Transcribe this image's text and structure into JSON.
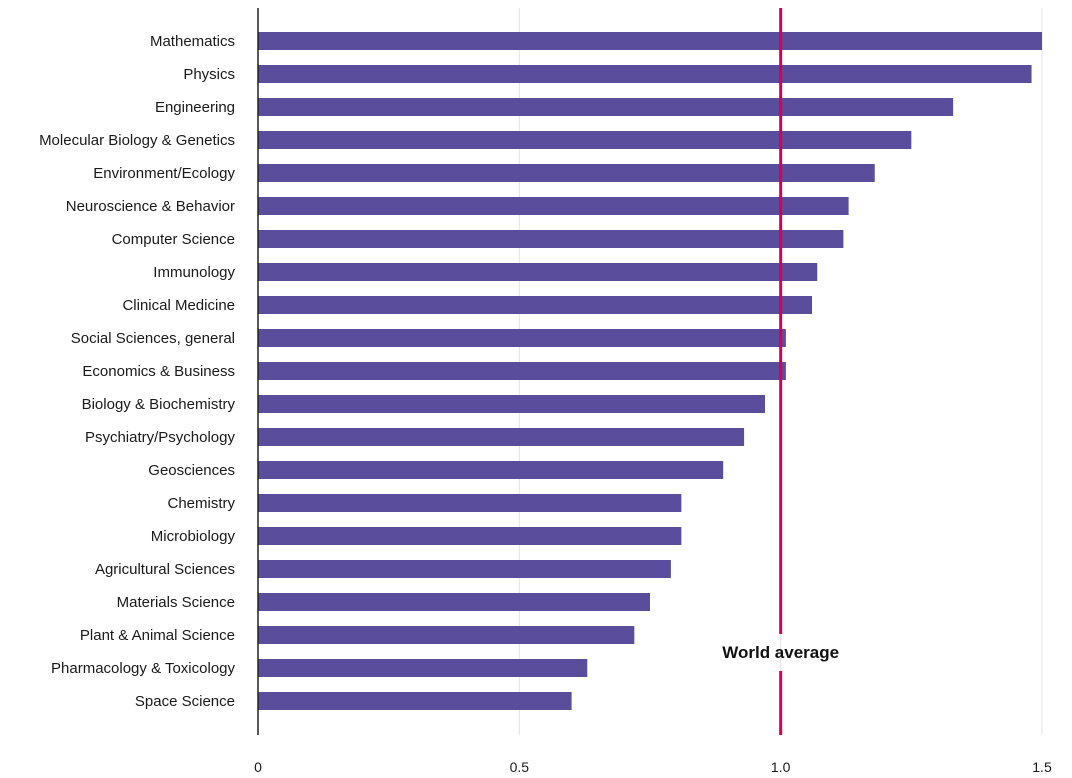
{
  "chart_data": {
    "type": "bar",
    "orientation": "horizontal",
    "categories": [
      "Mathematics",
      "Physics",
      "Engineering",
      "Molecular Biology & Genetics",
      "Environment/Ecology",
      "Neuroscience & Behavior",
      "Computer Science",
      "Immunology",
      "Clinical Medicine",
      "Social Sciences, general",
      "Economics & Business",
      "Biology & Biochemistry",
      "Psychiatry/Psychology",
      "Geosciences",
      "Chemistry",
      "Microbiology",
      "Agricultural Sciences",
      "Materials Science",
      "Plant & Animal Science",
      "Pharmacology & Toxicology",
      "Space Science"
    ],
    "values": [
      1.5,
      1.48,
      1.33,
      1.25,
      1.18,
      1.13,
      1.12,
      1.07,
      1.06,
      1.01,
      1.01,
      0.97,
      0.93,
      0.89,
      0.81,
      0.81,
      0.79,
      0.75,
      0.72,
      0.63,
      0.6
    ],
    "xlim": [
      0,
      1.5
    ],
    "ticks": [
      "0",
      "0.5",
      "1.0",
      "1.5"
    ],
    "tick_values": [
      0,
      0.5,
      1.0,
      1.5
    ],
    "reference_line": {
      "value": 1.0,
      "label": "World average",
      "color": "#d6005b"
    },
    "bar_color": "#5a4e9c",
    "grid": true,
    "title": "",
    "xlabel": "",
    "ylabel": ""
  }
}
